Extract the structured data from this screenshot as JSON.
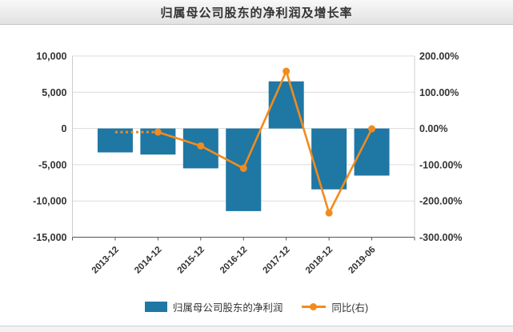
{
  "header": {
    "title": "归属母公司股东的净利润及增长率"
  },
  "legend": {
    "bar_label": "归属母公司股东的净利润",
    "line_label": "同比(右)"
  },
  "colors": {
    "bar": "#1f77a4",
    "line": "#f28b1d",
    "grid": "#dcdcdc",
    "axis_line": "#555555",
    "plot_border": "#cccccc",
    "axis_text": "#333333"
  },
  "chart_data": {
    "type": "combo",
    "title": "归属母公司股东的净利润及增长率",
    "categories": [
      "2013-12",
      "2014-12",
      "2015-12",
      "2016-12",
      "2017-12",
      "2018-12",
      "2019-06"
    ],
    "series": [
      {
        "name": "归属母公司股东的净利润",
        "type": "bar",
        "axis": "left",
        "values": [
          -3300,
          -3600,
          -5500,
          -11400,
          6500,
          -8400,
          -6500
        ]
      },
      {
        "name": "同比(右)",
        "type": "line",
        "axis": "right",
        "values": [
          null,
          -10,
          -48,
          -110,
          158,
          -233,
          -1
        ],
        "first_segment_dotted": true,
        "first_segment_level": -10
      }
    ],
    "left_axis": {
      "min": -15000,
      "max": 10000,
      "tick_values": [
        10000,
        5000,
        0,
        -5000,
        -10000,
        -15000
      ],
      "tick_labels": [
        "10,000",
        "5,000",
        "0",
        "-5,000",
        "-10,000",
        "-15,000"
      ]
    },
    "right_axis": {
      "min": -300,
      "max": 200,
      "tick_values": [
        200,
        100,
        0,
        -100,
        -200,
        -300
      ],
      "tick_labels": [
        "200.00%",
        "100.00%",
        "0.00%",
        "-100.00%",
        "-200.00%",
        "-300.00%"
      ]
    },
    "grid": true,
    "legend_position": "bottom"
  }
}
